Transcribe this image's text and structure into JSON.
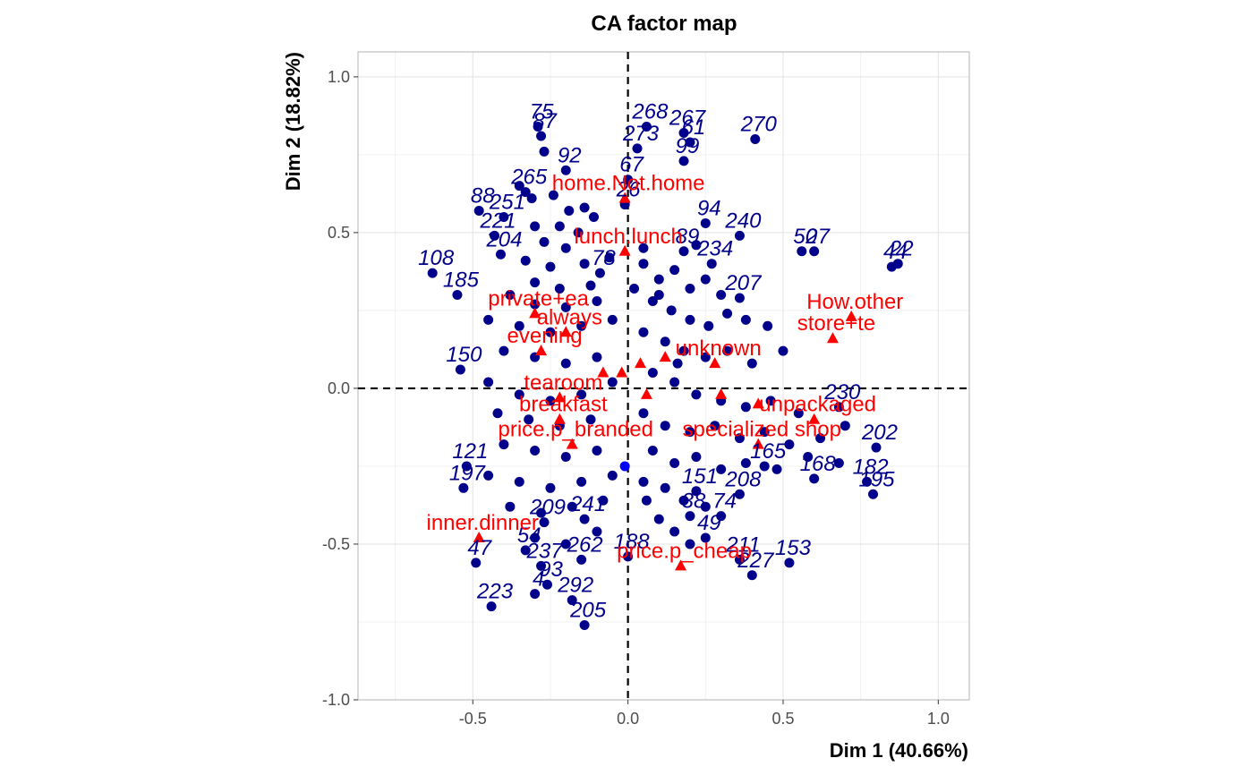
{
  "chart_data": {
    "type": "scatter",
    "title": "CA factor map",
    "xlabel": "Dim 1 (40.66%)",
    "ylabel": "Dim 2 (18.82%)",
    "xlim": [
      -0.87,
      1.1
    ],
    "ylim": [
      -1.0,
      1.08
    ],
    "xticks": [
      -0.5,
      0.0,
      0.5,
      1.0
    ],
    "xtick_labels": [
      "-0.5",
      "0.0",
      "0.5",
      "1.0"
    ],
    "yticks": [
      -1.0,
      -0.5,
      0.0,
      0.5,
      1.0
    ],
    "ytick_labels": [
      "-1.0",
      "-0.5",
      "0.0",
      "0.5",
      "1.0"
    ],
    "grid": true,
    "reference_lines": {
      "x": 0,
      "y": 0,
      "style": "dashed"
    },
    "colors": {
      "rows": "#00008B",
      "columns": "#FF0000",
      "supplementary": "#0000FF"
    },
    "series": [
      {
        "name": "rows",
        "marker": "circle",
        "color": "#00008B",
        "labeled_points": [
          {
            "label": "75",
            "x": -0.29,
            "y": 0.84
          },
          {
            "label": "87",
            "x": -0.28,
            "y": 0.81
          },
          {
            "label": "268",
            "x": 0.06,
            "y": 0.84
          },
          {
            "label": "267",
            "x": 0.18,
            "y": 0.82
          },
          {
            "label": "273",
            "x": 0.03,
            "y": 0.77
          },
          {
            "label": "61",
            "x": 0.2,
            "y": 0.79
          },
          {
            "label": "270",
            "x": 0.41,
            "y": 0.8
          },
          {
            "label": "92",
            "x": -0.2,
            "y": 0.7
          },
          {
            "label": "99",
            "x": 0.18,
            "y": 0.73
          },
          {
            "label": "67",
            "x": 0.0,
            "y": 0.67
          },
          {
            "label": "88",
            "x": -0.48,
            "y": 0.57
          },
          {
            "label": "251",
            "x": -0.4,
            "y": 0.55
          },
          {
            "label": "265",
            "x": -0.33,
            "y": 0.63
          },
          {
            "label": "221",
            "x": -0.43,
            "y": 0.49
          },
          {
            "label": "26",
            "x": -0.01,
            "y": 0.59
          },
          {
            "label": "94",
            "x": 0.25,
            "y": 0.53
          },
          {
            "label": "240",
            "x": 0.36,
            "y": 0.49
          },
          {
            "label": "50",
            "x": 0.56,
            "y": 0.44
          },
          {
            "label": "27",
            "x": 0.6,
            "y": 0.44
          },
          {
            "label": "22",
            "x": 0.87,
            "y": 0.4
          },
          {
            "label": "44",
            "x": 0.85,
            "y": 0.39
          },
          {
            "label": "108",
            "x": -0.63,
            "y": 0.37
          },
          {
            "label": "89",
            "x": 0.18,
            "y": 0.44
          },
          {
            "label": "234",
            "x": 0.27,
            "y": 0.4
          },
          {
            "label": "78",
            "x": -0.09,
            "y": 0.37
          },
          {
            "label": "207",
            "x": 0.36,
            "y": 0.29
          },
          {
            "label": "185",
            "x": -0.55,
            "y": 0.3
          },
          {
            "label": "204",
            "x": -0.41,
            "y": 0.43
          },
          {
            "label": "202",
            "x": 0.8,
            "y": -0.19
          },
          {
            "label": "230",
            "x": 0.68,
            "y": -0.06
          },
          {
            "label": "182",
            "x": 0.77,
            "y": -0.3
          },
          {
            "label": "195",
            "x": 0.79,
            "y": -0.34
          },
          {
            "label": "168",
            "x": 0.6,
            "y": -0.29
          },
          {
            "label": "208",
            "x": 0.36,
            "y": -0.34
          },
          {
            "label": "165",
            "x": 0.44,
            "y": -0.25
          },
          {
            "label": "151",
            "x": 0.22,
            "y": -0.33
          },
          {
            "label": "74",
            "x": 0.3,
            "y": -0.41
          },
          {
            "label": "38",
            "x": 0.2,
            "y": -0.41
          },
          {
            "label": "49",
            "x": 0.25,
            "y": -0.48
          },
          {
            "label": "188",
            "x": 0.0,
            "y": -0.54
          },
          {
            "label": "211",
            "x": 0.36,
            "y": -0.55
          },
          {
            "label": "153",
            "x": 0.52,
            "y": -0.56
          },
          {
            "label": "227",
            "x": 0.4,
            "y": -0.6
          },
          {
            "label": "47",
            "x": -0.49,
            "y": -0.56
          },
          {
            "label": "54",
            "x": -0.33,
            "y": -0.52
          },
          {
            "label": "237",
            "x": -0.28,
            "y": -0.57
          },
          {
            "label": "262",
            "x": -0.15,
            "y": -0.55
          },
          {
            "label": "93",
            "x": -0.26,
            "y": -0.63
          },
          {
            "label": "4",
            "x": -0.3,
            "y": -0.66
          },
          {
            "label": "292",
            "x": -0.18,
            "y": -0.68
          },
          {
            "label": "223",
            "x": -0.44,
            "y": -0.7
          },
          {
            "label": "205",
            "x": -0.14,
            "y": -0.76
          },
          {
            "label": "209",
            "x": -0.27,
            "y": -0.43
          },
          {
            "label": "241",
            "x": -0.14,
            "y": -0.42
          },
          {
            "label": "197",
            "x": -0.53,
            "y": -0.32
          },
          {
            "label": "121",
            "x": -0.52,
            "y": -0.25
          },
          {
            "label": "150",
            "x": -0.54,
            "y": 0.06
          }
        ],
        "unlabeled_points": [
          [
            -0.27,
            0.76
          ],
          [
            -0.35,
            0.65
          ],
          [
            -0.31,
            0.61
          ],
          [
            -0.24,
            0.62
          ],
          [
            -0.19,
            0.57
          ],
          [
            -0.14,
            0.58
          ],
          [
            -0.11,
            0.55
          ],
          [
            -0.3,
            0.52
          ],
          [
            -0.22,
            0.52
          ],
          [
            -0.16,
            0.5
          ],
          [
            -0.27,
            0.47
          ],
          [
            -0.2,
            0.45
          ],
          [
            -0.33,
            0.41
          ],
          [
            -0.25,
            0.39
          ],
          [
            -0.14,
            0.4
          ],
          [
            -0.06,
            0.42
          ],
          [
            -0.3,
            0.34
          ],
          [
            -0.22,
            0.32
          ],
          [
            -0.12,
            0.33
          ],
          [
            -0.38,
            0.3
          ],
          [
            -0.3,
            0.27
          ],
          [
            -0.2,
            0.26
          ],
          [
            -0.1,
            0.28
          ],
          [
            -0.45,
            0.22
          ],
          [
            -0.35,
            0.2
          ],
          [
            -0.25,
            0.18
          ],
          [
            -0.15,
            0.2
          ],
          [
            -0.05,
            0.22
          ],
          [
            -0.4,
            0.12
          ],
          [
            -0.3,
            0.1
          ],
          [
            -0.2,
            0.08
          ],
          [
            -0.1,
            0.1
          ],
          [
            -0.45,
            0.02
          ],
          [
            -0.35,
            -0.02
          ],
          [
            -0.25,
            -0.04
          ],
          [
            -0.15,
            -0.02
          ],
          [
            -0.05,
            0.02
          ],
          [
            -0.42,
            -0.08
          ],
          [
            -0.32,
            -0.1
          ],
          [
            -0.22,
            -0.12
          ],
          [
            -0.12,
            -0.1
          ],
          [
            -0.4,
            -0.18
          ],
          [
            -0.3,
            -0.2
          ],
          [
            -0.2,
            -0.22
          ],
          [
            -0.1,
            -0.2
          ],
          [
            -0.45,
            -0.28
          ],
          [
            -0.35,
            -0.3
          ],
          [
            -0.25,
            -0.32
          ],
          [
            -0.15,
            -0.3
          ],
          [
            -0.05,
            -0.28
          ],
          [
            -0.38,
            -0.38
          ],
          [
            -0.28,
            -0.4
          ],
          [
            -0.18,
            -0.38
          ],
          [
            -0.08,
            -0.36
          ],
          [
            -0.3,
            -0.48
          ],
          [
            -0.2,
            -0.5
          ],
          [
            -0.1,
            -0.46
          ],
          [
            0.05,
            0.4
          ],
          [
            0.1,
            0.35
          ],
          [
            0.15,
            0.38
          ],
          [
            0.2,
            0.32
          ],
          [
            0.25,
            0.35
          ],
          [
            0.3,
            0.3
          ],
          [
            0.08,
            0.28
          ],
          [
            0.14,
            0.25
          ],
          [
            0.2,
            0.22
          ],
          [
            0.26,
            0.2
          ],
          [
            0.32,
            0.24
          ],
          [
            0.38,
            0.22
          ],
          [
            0.45,
            0.2
          ],
          [
            0.05,
            0.18
          ],
          [
            0.12,
            0.15
          ],
          [
            0.18,
            0.12
          ],
          [
            0.25,
            0.1
          ],
          [
            0.32,
            0.12
          ],
          [
            0.4,
            0.08
          ],
          [
            0.5,
            0.12
          ],
          [
            0.08,
            0.05
          ],
          [
            0.15,
            0.02
          ],
          [
            0.22,
            -0.02
          ],
          [
            0.3,
            -0.04
          ],
          [
            0.38,
            -0.06
          ],
          [
            0.46,
            -0.04
          ],
          [
            0.55,
            -0.08
          ],
          [
            0.05,
            -0.08
          ],
          [
            0.12,
            -0.12
          ],
          [
            0.2,
            -0.14
          ],
          [
            0.28,
            -0.12
          ],
          [
            0.36,
            -0.16
          ],
          [
            0.44,
            -0.14
          ],
          [
            0.52,
            -0.18
          ],
          [
            0.62,
            -0.16
          ],
          [
            0.7,
            -0.12
          ],
          [
            0.08,
            -0.2
          ],
          [
            0.15,
            -0.24
          ],
          [
            0.22,
            -0.22
          ],
          [
            0.3,
            -0.26
          ],
          [
            0.38,
            -0.24
          ],
          [
            0.48,
            -0.26
          ],
          [
            0.58,
            -0.22
          ],
          [
            0.68,
            -0.24
          ],
          [
            0.05,
            -0.3
          ],
          [
            0.12,
            -0.32
          ],
          [
            0.18,
            -0.36
          ],
          [
            0.25,
            -0.38
          ],
          [
            0.1,
            -0.42
          ],
          [
            0.15,
            -0.46
          ],
          [
            0.2,
            -0.5
          ],
          [
            0.05,
            0.45
          ],
          [
            0.22,
            0.46
          ],
          [
            0.1,
            0.3
          ],
          [
            0.16,
            0.08
          ],
          [
            0.06,
            -0.36
          ],
          [
            0.02,
            0.32
          ]
        ]
      },
      {
        "name": "columns",
        "marker": "triangle",
        "color": "#FF0000",
        "labeled_points": [
          {
            "label": "home.Not.home",
            "x": -0.01,
            "y": 0.61
          },
          {
            "label": "lunch.lunch",
            "x": -0.01,
            "y": 0.44
          },
          {
            "label": "private+ea",
            "x": -0.3,
            "y": 0.24
          },
          {
            "label": "always",
            "x": -0.2,
            "y": 0.18
          },
          {
            "label": "evening",
            "x": -0.28,
            "y": 0.12
          },
          {
            "label": "How.other",
            "x": 0.72,
            "y": 0.23
          },
          {
            "label": "store+te",
            "x": 0.66,
            "y": 0.16
          },
          {
            "label": "tearoom",
            "x": -0.22,
            "y": -0.03
          },
          {
            "label": "breakfast",
            "x": -0.22,
            "y": -0.1
          },
          {
            "label": "price.p_branded",
            "x": -0.18,
            "y": -0.18
          },
          {
            "label": "unpackaged",
            "x": 0.6,
            "y": -0.1
          },
          {
            "label": "specialized shop",
            "x": 0.42,
            "y": -0.18
          },
          {
            "label": "price.p_cheap",
            "x": 0.17,
            "y": -0.57
          },
          {
            "label": "inner.dinner",
            "x": -0.48,
            "y": -0.48
          },
          {
            "label": "unknown",
            "x": 0.28,
            "y": 0.08
          }
        ],
        "unlabeled_points": [
          [
            0.12,
            0.1
          ],
          [
            0.04,
            0.08
          ],
          [
            -0.08,
            0.05
          ],
          [
            0.3,
            -0.02
          ],
          [
            0.06,
            -0.02
          ],
          [
            -0.02,
            0.05
          ],
          [
            0.42,
            -0.05
          ]
        ]
      },
      {
        "name": "supplementary",
        "marker": "circle",
        "color": "#0000FF",
        "unlabeled_points": [
          [
            -0.01,
            -0.25
          ]
        ]
      }
    ]
  }
}
